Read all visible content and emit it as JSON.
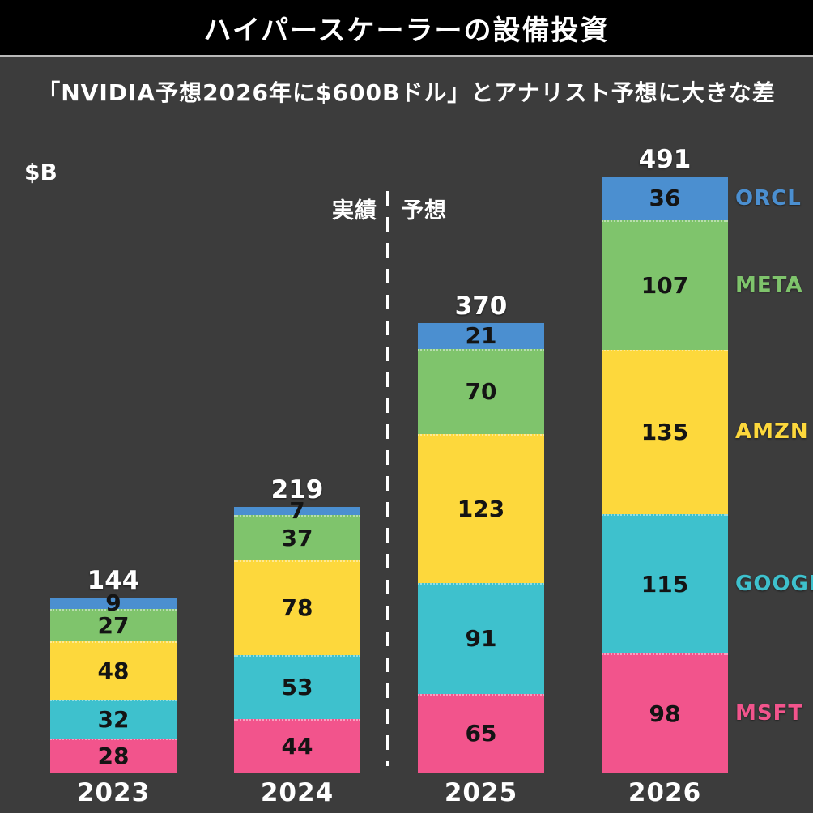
{
  "header": {
    "title": "ハイパースケーラーの設備投資"
  },
  "subtitle": "「NVIDIA予想2026年に$600Bドル」とアナリスト予想に大きな差",
  "axis": {
    "unit_label": "$B"
  },
  "divider": {
    "left_label": "実績",
    "right_label": "予想"
  },
  "chart_data": {
    "type": "bar",
    "stacked": true,
    "title": "ハイパースケーラーの設備投資",
    "unit": "$B",
    "categories": [
      "2023",
      "2024",
      "2025",
      "2026"
    ],
    "totals": [
      144,
      219,
      370,
      491
    ],
    "series_order": "bottom-to-top",
    "series": [
      {
        "name": "MSFT",
        "color": "#f2548c",
        "values": [
          28,
          44,
          65,
          98
        ]
      },
      {
        "name": "GOOGL",
        "color": "#3ec1cd",
        "values": [
          32,
          53,
          91,
          115
        ]
      },
      {
        "name": "AMZN",
        "color": "#fdd83c",
        "values": [
          48,
          78,
          123,
          135
        ]
      },
      {
        "name": "META",
        "color": "#7fc46c",
        "values": [
          27,
          37,
          70,
          107
        ]
      },
      {
        "name": "ORCL",
        "color": "#4b8fd0",
        "values": [
          9,
          7,
          21,
          36
        ]
      }
    ],
    "annotations": {
      "actual_label": "実績",
      "forecast_label": "予想"
    },
    "legend_position": "right",
    "grid": false
  }
}
